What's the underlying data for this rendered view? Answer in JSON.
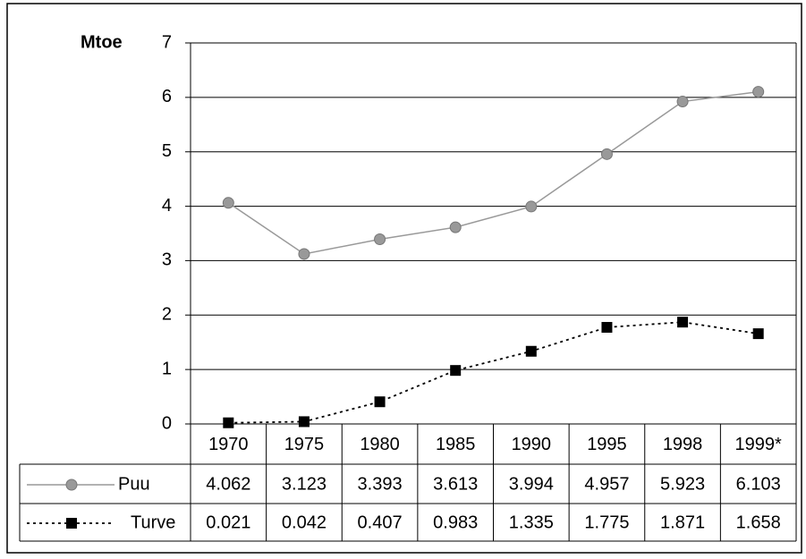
{
  "chart_data": {
    "type": "line",
    "ylabel": "Mtoe",
    "categories": [
      "1970",
      "1975",
      "1980",
      "1985",
      "1990",
      "1995",
      "1998",
      "1999*"
    ],
    "series": [
      {
        "name": "Puu",
        "color": "#999999",
        "marker": "circle",
        "line": "solid",
        "values": [
          4.062,
          3.123,
          3.393,
          3.613,
          3.994,
          4.957,
          5.923,
          6.103
        ]
      },
      {
        "name": "Turve",
        "color": "#000000",
        "marker": "square",
        "line": "dotted",
        "values": [
          0.021,
          0.042,
          0.407,
          0.983,
          1.335,
          1.775,
          1.871,
          1.658
        ]
      }
    ],
    "ylim": [
      0,
      7
    ],
    "yticks": [
      0,
      1,
      2,
      3,
      4,
      5,
      6,
      7
    ],
    "grid": true,
    "data_table": true
  }
}
